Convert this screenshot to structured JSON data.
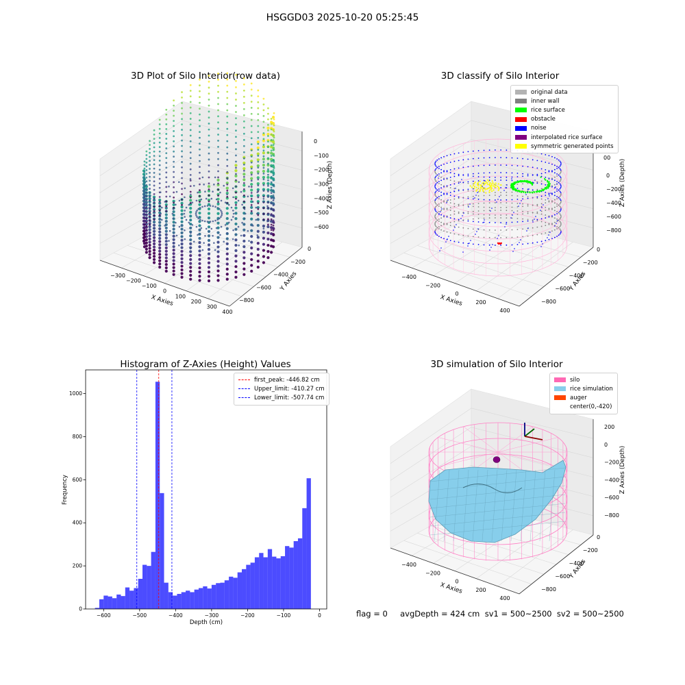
{
  "suptitle": "HSGGD03 2025-10-20 05:25:45",
  "footer": "flag = 0     avgDepth = 424 cm  sv1 = 500~2500  sv2 = 500~2500",
  "chart_data": [
    {
      "type": "scatter3d",
      "title": "3D Plot of Silo Interior(row data)",
      "xlabel": "X Axies",
      "ylabel": "Y Axies",
      "zlabel": "Z Axies (Depth)",
      "xticks": [
        "−300",
        "−200",
        "−100",
        "0",
        "100",
        "200",
        "300",
        "400"
      ],
      "yticks": [
        "0",
        "−200",
        "−400",
        "−600",
        "−800"
      ],
      "zticks": [
        "0",
        "−100",
        "−200",
        "−300",
        "−400",
        "−500",
        "−600"
      ],
      "xlim": [
        -350,
        400
      ],
      "ylim": [
        -850,
        50
      ],
      "zlim": [
        -650,
        0
      ],
      "colormap": "viridis",
      "silo": {
        "center": [
          0,
          -420
        ],
        "radius": 300
      }
    },
    {
      "type": "scatter3d",
      "title": "3D classify of Silo Interior",
      "xlabel": "X Axies",
      "ylabel": "Y Axies",
      "zlabel": "Z Axies (Depth)",
      "xticks": [
        "−400",
        "−200",
        "0",
        "200",
        "400"
      ],
      "yticks": [
        "0",
        "−200",
        "−400",
        "−600",
        "−800"
      ],
      "zticks": [
        "0",
        "−200",
        "−400",
        "−600",
        "−800"
      ],
      "ztop_label": "00",
      "xlim": [
        -450,
        450
      ],
      "ylim": [
        -850,
        50
      ],
      "zlim": [
        -850,
        50
      ],
      "legend": [
        {
          "label": "original data",
          "color": "#b3b3b3"
        },
        {
          "label": "inner wall",
          "color": "#808080"
        },
        {
          "label": "rice surface",
          "color": "#00ff00"
        },
        {
          "label": "obstacle",
          "color": "#ff0000"
        },
        {
          "label": "noise",
          "color": "#0000ff"
        },
        {
          "label": "interpolated rice surface",
          "color": "#800080"
        },
        {
          "label": "symmetric generated points",
          "color": "#ffff00"
        }
      ],
      "silo": {
        "center": [
          0,
          -420
        ],
        "radius": 440,
        "top": 0,
        "bottom": -850
      }
    },
    {
      "type": "bar",
      "title": "Histogram of Z-Axies (Height) Values",
      "xlabel": "Depth (cm)",
      "ylabel": "Frequency",
      "xlim": [
        -650,
        20
      ],
      "ylim": [
        0,
        1110
      ],
      "xticks": [
        -600,
        -500,
        -400,
        -300,
        -200,
        -100,
        0
      ],
      "xtick_labels": [
        "−600",
        "−500",
        "−400",
        "−300",
        "−200",
        "−100",
        "0"
      ],
      "yticks": [
        0,
        200,
        400,
        600,
        800,
        1000
      ],
      "bar_color": "#0000ff",
      "bin_start": -624,
      "bin_width": 12,
      "values": [
        5,
        45,
        62,
        58,
        50,
        67,
        60,
        100,
        85,
        97,
        140,
        205,
        200,
        265,
        1055,
        538,
        122,
        78,
        62,
        70,
        78,
        85,
        78,
        90,
        97,
        105,
        95,
        112,
        120,
        122,
        133,
        150,
        145,
        170,
        185,
        205,
        215,
        240,
        260,
        240,
        278,
        243,
        235,
        245,
        292,
        285,
        315,
        328,
        468,
        607
      ],
      "lines": [
        {
          "x": -446.82,
          "color": "#ff0000",
          "label": "first_peak: -446.82 cm"
        },
        {
          "x": -410.27,
          "color": "#0000ff",
          "label": "Upper_limit: -410.27 cm"
        },
        {
          "x": -507.74,
          "color": "#0000ff",
          "label": "Lower_limit: -507.74 cm"
        }
      ],
      "legend_loc": "upper right"
    },
    {
      "type": "surface3d",
      "title": "3D simulation of Silo Interior",
      "xlabel": "X Axies",
      "ylabel": "Y Axies",
      "zlabel": "Z Axies (Depth)",
      "xticks": [
        "−400",
        "−200",
        "0",
        "200",
        "400"
      ],
      "yticks": [
        "0",
        "−200",
        "−400",
        "−600",
        "−800"
      ],
      "zticks": [
        "200",
        "0",
        "−200",
        "−400",
        "−600",
        "−800"
      ],
      "xlim": [
        -450,
        450
      ],
      "ylim": [
        -850,
        50
      ],
      "zlim": [
        -850,
        250
      ],
      "legend": [
        {
          "label": "silo",
          "color": "#ff69b4"
        },
        {
          "label": "rice simulation",
          "color": "#87ceeb"
        },
        {
          "label": "auger",
          "color": "#ff4500"
        },
        {
          "label": "center(0,-420)",
          "color": ""
        }
      ]
    }
  ]
}
